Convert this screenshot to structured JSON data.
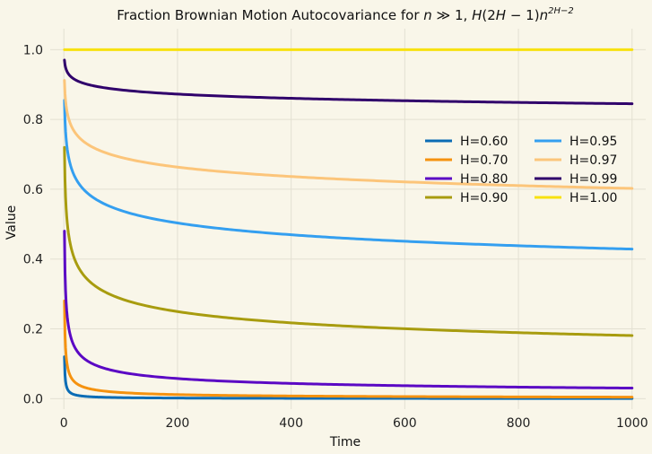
{
  "chart_data": {
    "type": "line",
    "title_main": "Fraction Brownian Motion Autocovariance for ",
    "title_math_1": "n",
    "title_math_2": " ≫ 1, ",
    "title_math_3": "H",
    "title_math_4": "(2",
    "title_math_5": "H",
    "title_math_6": " − 1)",
    "title_math_7": "n",
    "title_sup": "2H−2",
    "xlabel": "Time",
    "ylabel": "Value",
    "xlim": [
      -24,
      1024
    ],
    "ylim": [
      -0.03,
      1.06
    ],
    "xticks": [
      0,
      200,
      400,
      600,
      800,
      1000
    ],
    "xtick_labels": [
      "0",
      "200",
      "400",
      "600",
      "800",
      "1000"
    ],
    "yticks": [
      0.0,
      0.2,
      0.4,
      0.6,
      0.8,
      1.0
    ],
    "ytick_labels": [
      "0.0",
      "0.2",
      "0.4",
      "0.6",
      "0.8",
      "1.0"
    ],
    "grid": true,
    "legend_position": "center-right",
    "legend_columns": 2,
    "x_range": [
      1,
      1000
    ],
    "series": [
      {
        "name": "H=0.60",
        "H": 0.6,
        "color": "#0a6cb5"
      },
      {
        "name": "H=0.70",
        "H": 0.7,
        "color": "#f5920f"
      },
      {
        "name": "H=0.80",
        "H": 0.8,
        "color": "#5b08c4"
      },
      {
        "name": "H=0.90",
        "H": 0.9,
        "color": "#a89c0f"
      },
      {
        "name": "H=0.95",
        "H": 0.95,
        "color": "#349ff0"
      },
      {
        "name": "H=0.97",
        "H": 0.97,
        "color": "#fcc57a"
      },
      {
        "name": "H=0.99",
        "H": 0.99,
        "color": "#30006b"
      },
      {
        "name": "H=1.00",
        "H": 1.0,
        "color": "#f8e10f"
      }
    ]
  }
}
